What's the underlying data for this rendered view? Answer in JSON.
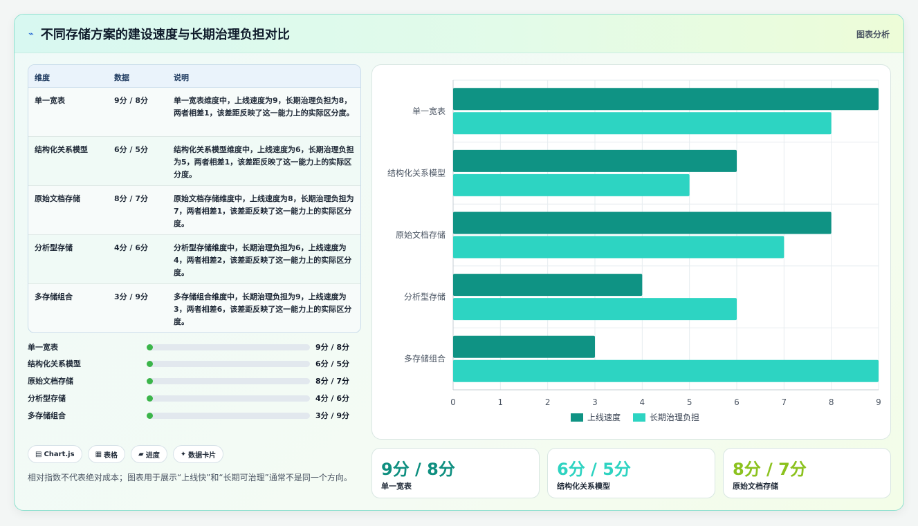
{
  "header": {
    "icon": "sparkline-icon",
    "title": "不同存储方案的建设速度与长期治理负担对比",
    "tag": "图表分析"
  },
  "table": {
    "headers": [
      "维度",
      "数据",
      "说明"
    ],
    "rows": [
      {
        "dim": "单一宽表",
        "data": "9分 / 8分",
        "desc": "单一宽表维度中，上线速度为9，长期治理负担为8，两者相差1，该差距反映了这一能力上的实际区分度。"
      },
      {
        "dim": "结构化关系模型",
        "data": "6分 / 5分",
        "desc": "结构化关系模型维度中，上线速度为6，长期治理负担为5，两者相差1，该差距反映了这一能力上的实际区分度。"
      },
      {
        "dim": "原始文档存储",
        "data": "8分 / 7分",
        "desc": "原始文档存储维度中，上线速度为8，长期治理负担为7，两者相差1，该差距反映了这一能力上的实际区分度。"
      },
      {
        "dim": "分析型存储",
        "data": "4分 / 6分",
        "desc": "分析型存储维度中，长期治理负担为6，上线速度为4，两者相差2，该差距反映了这一能力上的实际区分度。"
      },
      {
        "dim": "多存储组合",
        "data": "3分 / 9分",
        "desc": "多存储组合维度中，长期治理负担为9，上线速度为3，两者相差6，该差距反映了这一能力上的实际区分度。"
      }
    ]
  },
  "progress": [
    {
      "label": "单一宽表",
      "value": "9分 / 8分"
    },
    {
      "label": "结构化关系模型",
      "value": "6分 / 5分"
    },
    {
      "label": "原始文档存储",
      "value": "8分 / 7分"
    },
    {
      "label": "分析型存储",
      "value": "4分 / 6分"
    },
    {
      "label": "多存储组合",
      "value": "3分 / 9分"
    }
  ],
  "chips": [
    {
      "icon": "chart-icon",
      "glyph": "▤",
      "label": "Chart.js"
    },
    {
      "icon": "table-icon",
      "glyph": "▦",
      "label": "表格"
    },
    {
      "icon": "progress-icon",
      "glyph": "▰",
      "label": "进度"
    },
    {
      "icon": "sparkle-icon",
      "glyph": "✦",
      "label": "数据卡片"
    }
  ],
  "note": "相对指数不代表绝对成本；图表用于展示“上线快”和“长期可治理”通常不是同一个方向。",
  "stats": [
    {
      "value": "9分 / 8分",
      "label": "单一宽表",
      "color": "#0f8f80"
    },
    {
      "value": "6分 / 5分",
      "label": "结构化关系模型",
      "color": "#2ed3c1"
    },
    {
      "value": "8分 / 7分",
      "label": "原始文档存储",
      "color": "#8cc21f"
    }
  ],
  "chart_data": {
    "type": "bar",
    "orientation": "horizontal",
    "categories": [
      "单一宽表",
      "结构化关系模型",
      "原始文档存储",
      "分析型存储",
      "多存储组合"
    ],
    "series": [
      {
        "name": "上线速度",
        "values": [
          9,
          6,
          8,
          4,
          3
        ],
        "color": "#0f9384"
      },
      {
        "name": "长期治理负担",
        "values": [
          8,
          5,
          7,
          6,
          9
        ],
        "color": "#2dd4c2"
      }
    ],
    "xlim": [
      0,
      9
    ],
    "xticks": [
      "0",
      "1",
      "2",
      "3",
      "4",
      "5",
      "6",
      "7",
      "8",
      "9"
    ],
    "grid": true,
    "legend": "bottom"
  }
}
